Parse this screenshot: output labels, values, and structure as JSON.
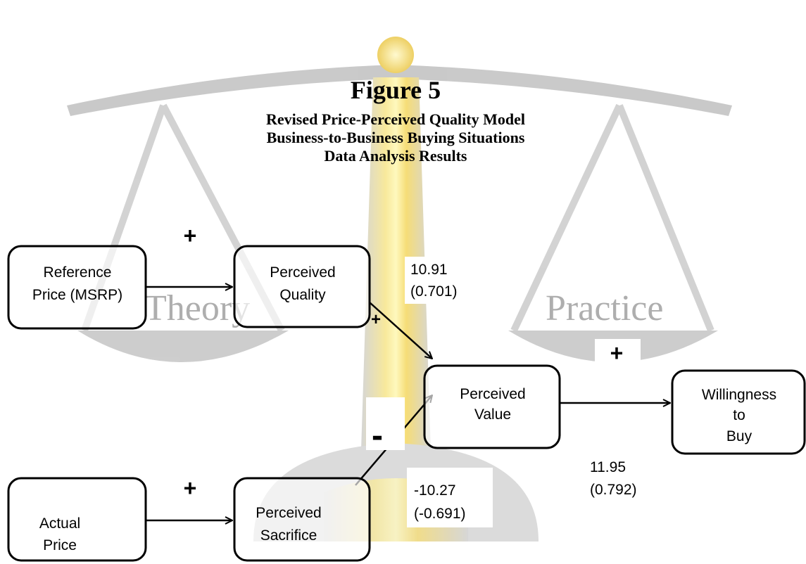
{
  "figure": {
    "title": "Figure 5",
    "subtitle": [
      "Revised Price-Perceived Quality Model",
      "Business-to-Business Buying Situations",
      "Data Analysis Results"
    ]
  },
  "watermark": [
    "Theory",
    "Practice"
  ],
  "nodes": [
    {
      "lines": [
        "Reference",
        "Price (MSRP)"
      ]
    },
    {
      "lines": [
        "Perceived",
        "Quality"
      ]
    },
    {
      "lines": [
        "Perceived",
        "Value"
      ]
    },
    {
      "lines": [
        "Willingness",
        "to",
        "Buy"
      ]
    },
    {
      "lines": [
        "Actual",
        "Price"
      ]
    },
    {
      "lines": [
        "Perceived",
        "Sacrifice"
      ]
    }
  ],
  "edge_labels": [
    {
      "lines": [
        "+"
      ]
    },
    {
      "lines": [
        "10.91",
        "(0.701)"
      ]
    },
    {
      "lines": [
        "+"
      ]
    },
    {
      "lines": [
        "-"
      ]
    },
    {
      "lines": [
        "+"
      ]
    },
    {
      "lines": [
        "+"
      ]
    },
    {
      "lines": [
        "-10.27",
        "(-0.691)"
      ]
    },
    {
      "lines": [
        "11.95",
        "(0.792)"
      ]
    }
  ]
}
